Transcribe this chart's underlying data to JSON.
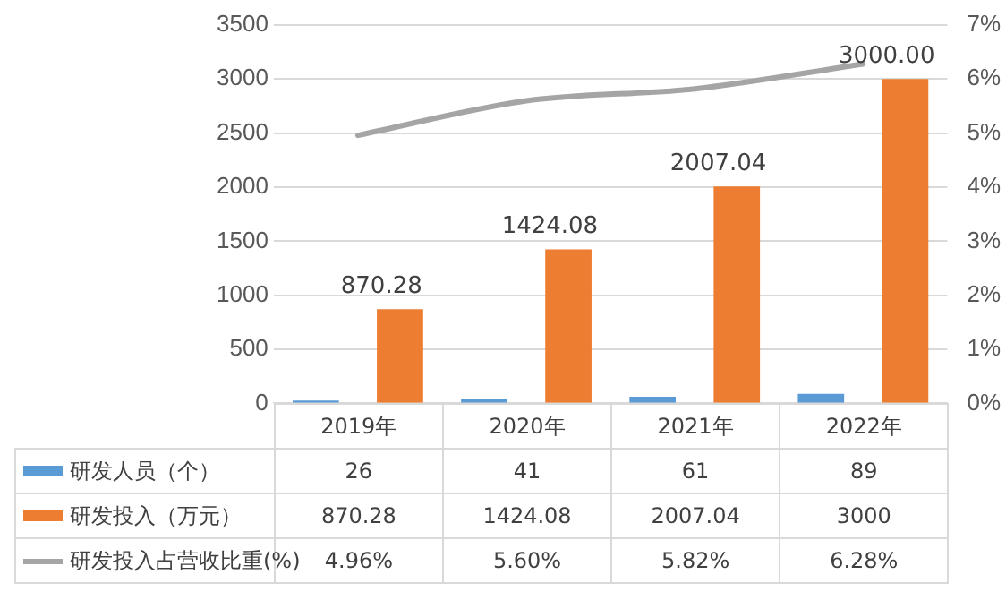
{
  "chart_data": {
    "type": "bar",
    "categories": [
      "2019年",
      "2020年",
      "2021年",
      "2022年"
    ],
    "series": [
      {
        "name": "研发人员（个）",
        "color": "#5b9bd5",
        "values": [
          26,
          41,
          61,
          89
        ],
        "value_labels": [
          "26",
          "41",
          "61",
          "89"
        ]
      },
      {
        "name": "研发投入（万元）",
        "color": "#ed7d31",
        "values": [
          870.28,
          1424.08,
          2007.04,
          3000
        ],
        "value_labels": [
          "870.28",
          "1424.08",
          "2007.04",
          "3000"
        ]
      },
      {
        "name": "研发投入占营收比重(%)",
        "type": "line",
        "axis": "y2",
        "color": "#a5a5a5",
        "values": [
          4.96,
          5.6,
          5.82,
          6.28
        ],
        "value_labels": [
          "4.96%",
          "5.60%",
          "5.82%",
          "6.28%"
        ]
      }
    ],
    "annotations": [
      "870.28",
      "1424.08",
      "2007.04",
      "3000.00"
    ],
    "ylim": [
      0,
      3500
    ],
    "yticks": [
      0,
      500,
      1000,
      1500,
      2000,
      2500,
      3000,
      3500
    ],
    "y2lim": [
      0,
      7
    ],
    "y2ticks": [
      {
        "value": 0,
        "label": "0%"
      },
      {
        "value": 1,
        "label": "1%"
      },
      {
        "value": 2,
        "label": "2%"
      },
      {
        "value": 3,
        "label": "3%"
      },
      {
        "value": 4,
        "label": "4%"
      },
      {
        "value": 5,
        "label": "5%"
      },
      {
        "value": 6,
        "label": "6%"
      },
      {
        "value": 7,
        "label": "7%"
      }
    ],
    "grid": "y",
    "legend": "bottom",
    "marker": "none"
  }
}
